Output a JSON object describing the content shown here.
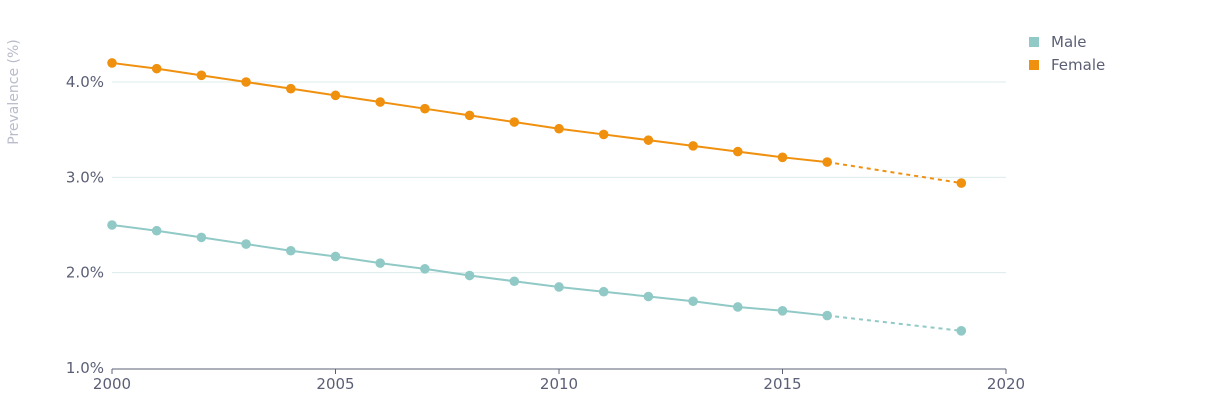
{
  "chart_data": {
    "type": "line",
    "title": "",
    "xlabel": "",
    "ylabel": "Prevalence (%)",
    "xlim": [
      2000,
      2020
    ],
    "ylim": [
      1.0,
      4.0
    ],
    "x_ticks": [
      2000,
      2005,
      2010,
      2015,
      2020
    ],
    "y_ticks": [
      {
        "value": 1.0,
        "label": "1.0%"
      },
      {
        "value": 2.0,
        "label": "2.0%"
      },
      {
        "value": 3.0,
        "label": "3.0%"
      },
      {
        "value": 4.0,
        "label": "4.0%"
      }
    ],
    "grid": "horizontal",
    "legend": "top-right",
    "series": [
      {
        "name": "Male",
        "color": "#90c9c6",
        "x": [
          2000,
          2001,
          2002,
          2003,
          2004,
          2005,
          2006,
          2007,
          2008,
          2009,
          2010,
          2011,
          2012,
          2013,
          2014,
          2015,
          2016,
          2019
        ],
        "values": [
          2.5,
          2.44,
          2.37,
          2.3,
          2.23,
          2.17,
          2.1,
          2.04,
          1.97,
          1.91,
          1.85,
          1.8,
          1.75,
          1.7,
          1.64,
          1.6,
          1.55,
          1.39
        ],
        "projected_from_x": 2016
      },
      {
        "name": "Female",
        "color": "#f0900f",
        "x": [
          2000,
          2001,
          2002,
          2003,
          2004,
          2005,
          2006,
          2007,
          2008,
          2009,
          2010,
          2011,
          2012,
          2013,
          2014,
          2015,
          2016,
          2019
        ],
        "values": [
          4.2,
          4.14,
          4.07,
          4.0,
          3.93,
          3.86,
          3.79,
          3.72,
          3.65,
          3.58,
          3.51,
          3.45,
          3.39,
          3.33,
          3.27,
          3.21,
          3.16,
          2.94
        ],
        "projected_from_x": 2016
      }
    ]
  },
  "style": {
    "grid_color": "#dbeceb",
    "axis_color": "#5b5f75",
    "text_color": "#5b5f75",
    "muted_text_color": "#b8bccb"
  }
}
